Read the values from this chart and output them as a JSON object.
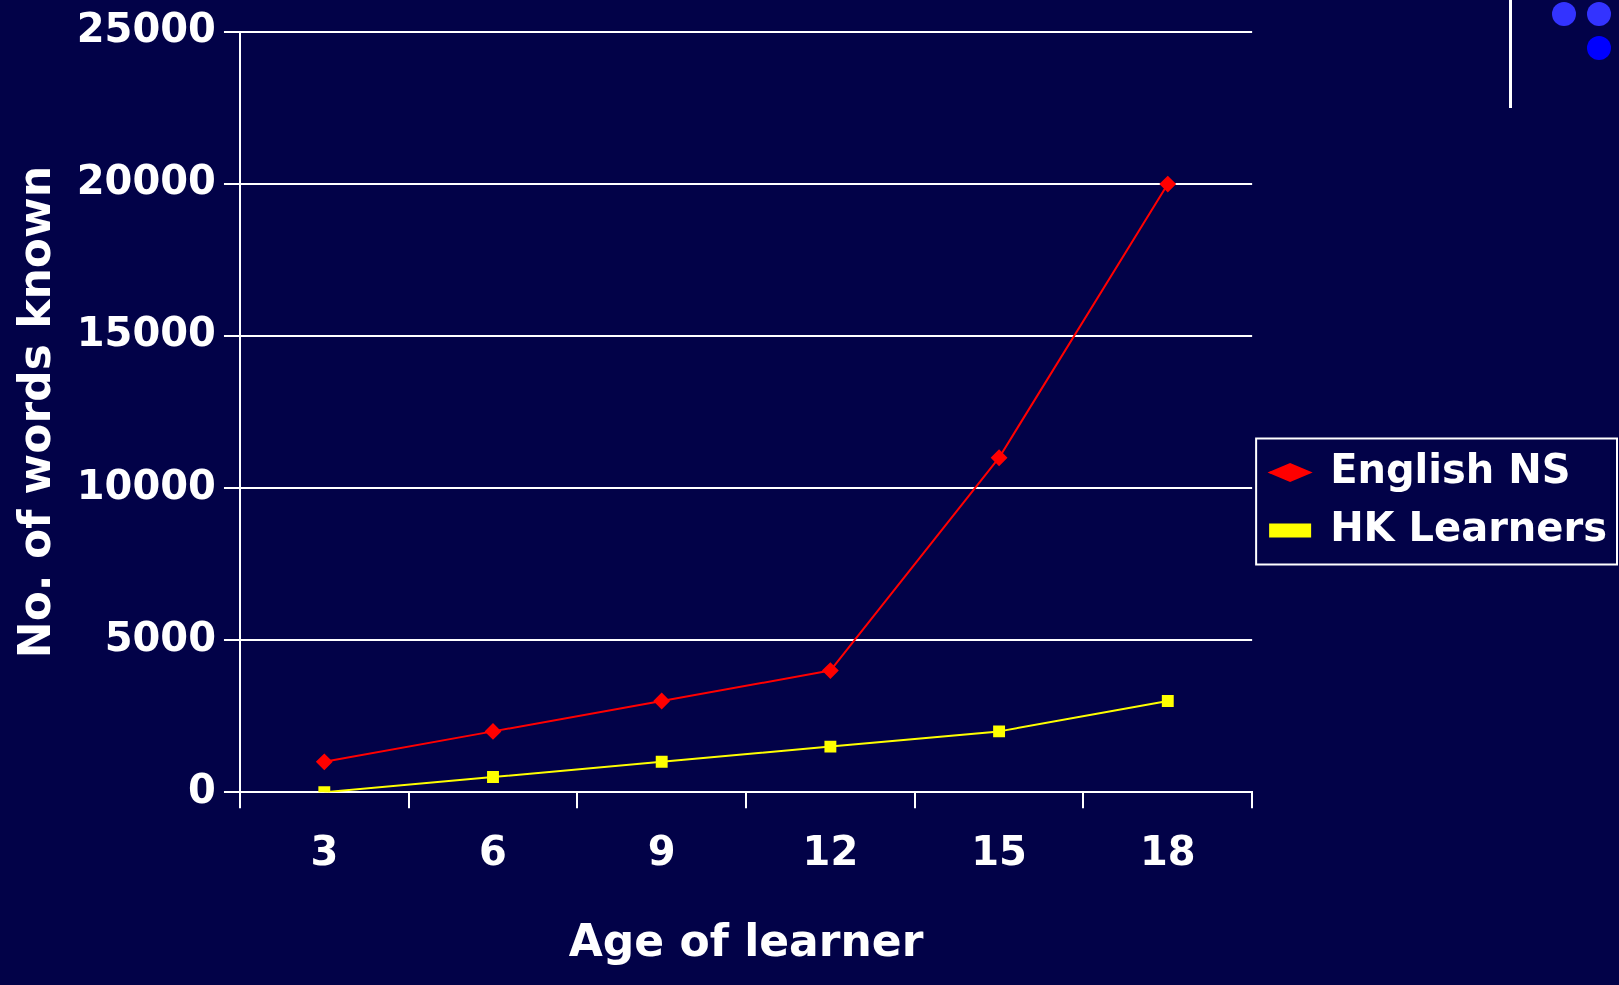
{
  "chart_data": {
    "type": "line",
    "xlabel": "Age of learner",
    "ylabel": "No. of words known",
    "categories": [
      "3",
      "6",
      "9",
      "12",
      "15",
      "18"
    ],
    "series": [
      {
        "name": "English NS",
        "color": "#ff0000",
        "marker": "diamond",
        "values": [
          1000,
          2000,
          3000,
          4000,
          11000,
          20000
        ]
      },
      {
        "name": "HK Learners",
        "color": "#ffff00",
        "marker": "square",
        "values": [
          0,
          500,
          1000,
          1500,
          2000,
          3000
        ]
      }
    ],
    "ylim": [
      0,
      25000
    ],
    "yticks": [
      0,
      5000,
      10000,
      15000,
      20000,
      25000
    ],
    "grid": "y",
    "legend": "right",
    "line_style": "solid"
  }
}
